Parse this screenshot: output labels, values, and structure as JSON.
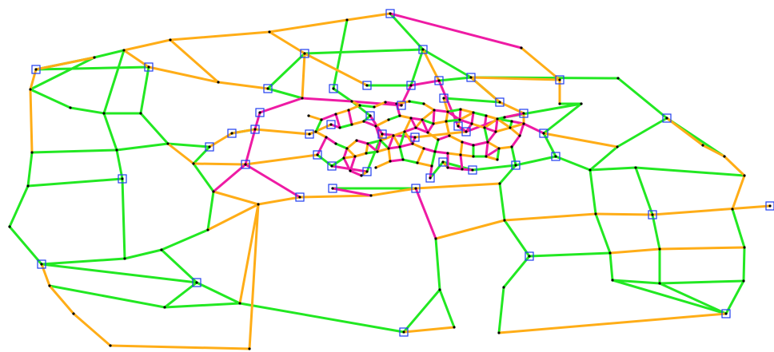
{
  "colors": {
    "background": "#ffffff",
    "green": "#22e822",
    "orange": "#ffad17",
    "magenta": "#ee1ba4",
    "node": "#000000",
    "station": "#1f3df0"
  },
  "legend": "none",
  "title": ""
}
